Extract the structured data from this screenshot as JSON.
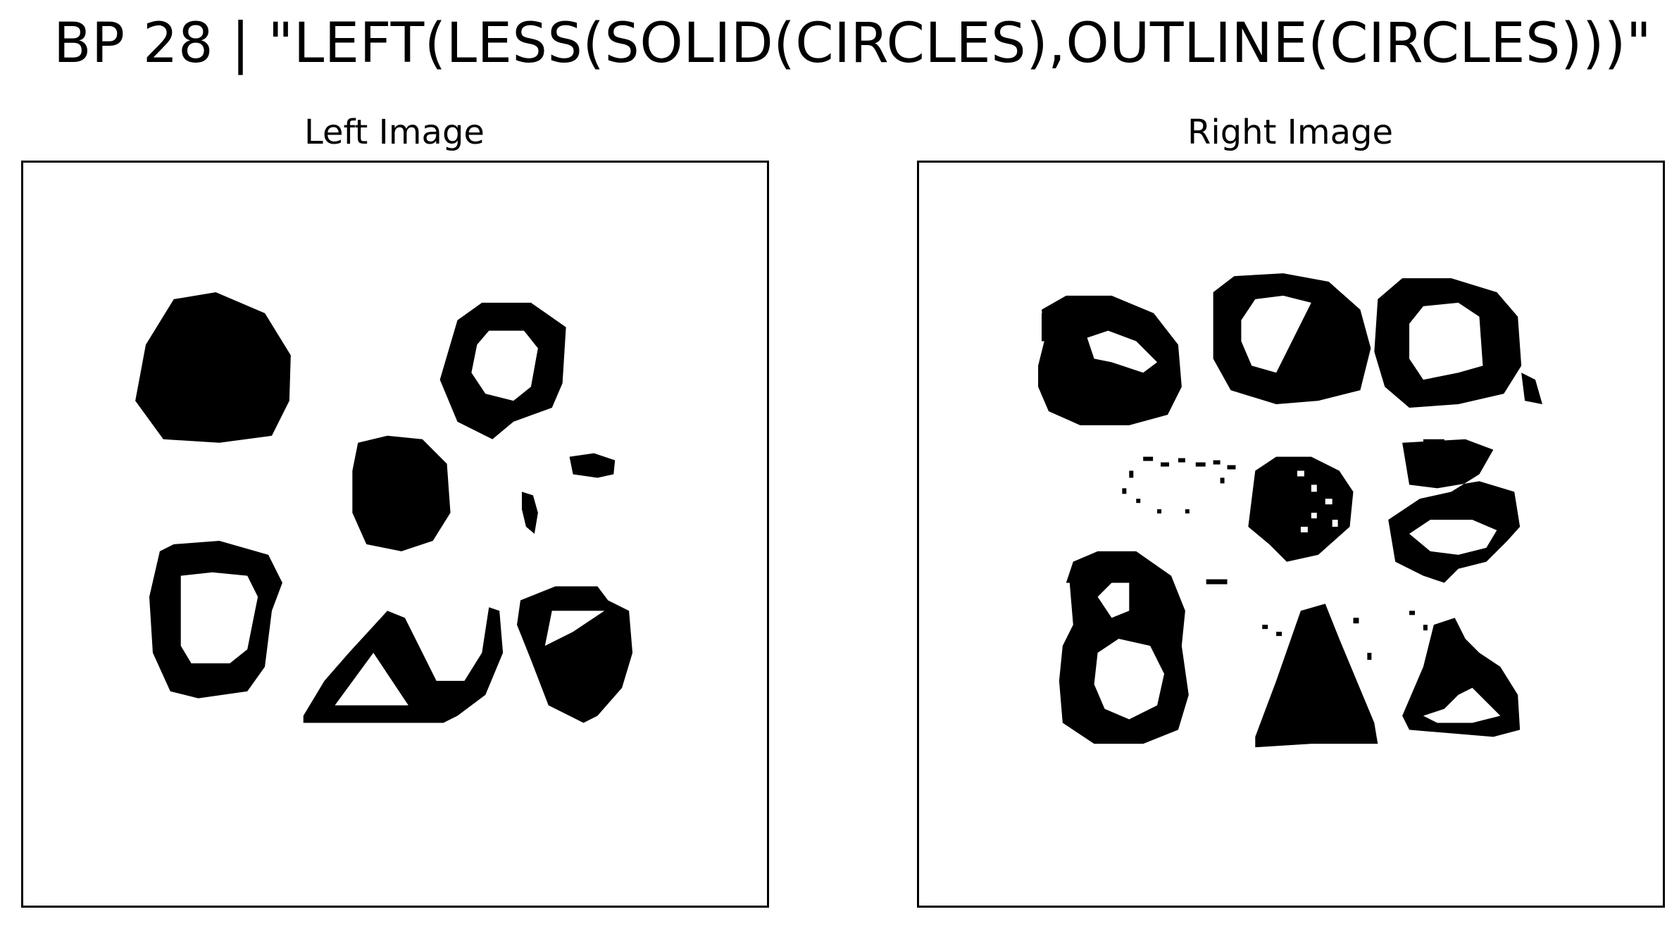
{
  "title": "BP 28 | \"LEFT(LESS(SOLID(CIRCLES),OUTLINE(CIRCLES)))\"",
  "panels": [
    {
      "label": "Left Image"
    },
    {
      "label": "Right Image"
    }
  ],
  "colors": {
    "ink": "#000000",
    "background": "#ffffff"
  }
}
